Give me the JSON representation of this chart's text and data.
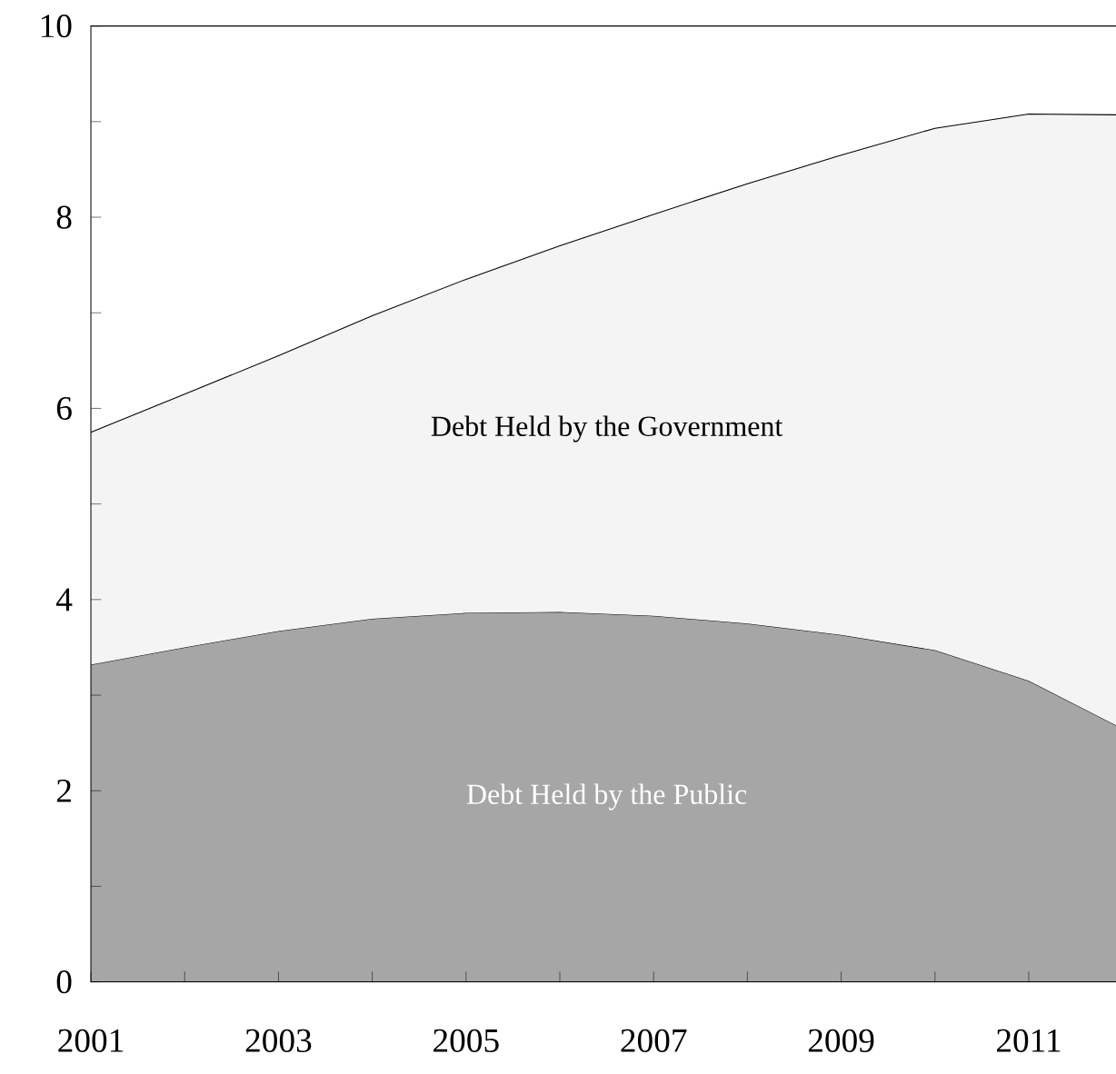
{
  "chart_data": {
    "type": "area",
    "stacked": true,
    "x": [
      2001,
      2002,
      2003,
      2004,
      2005,
      2006,
      2007,
      2008,
      2009,
      2010,
      2011,
      2012
    ],
    "series": [
      {
        "name": "Debt Held by the Public",
        "color": "#a6a6a6",
        "values": [
          3.32,
          3.5,
          3.67,
          3.8,
          3.86,
          3.87,
          3.83,
          3.75,
          3.63,
          3.47,
          3.15,
          2.65
        ]
      },
      {
        "name": "Debt Held by the Government",
        "color": "#f4f4f4",
        "values": [
          2.43,
          2.65,
          2.88,
          3.17,
          3.49,
          3.83,
          4.2,
          4.6,
          5.02,
          5.46,
          5.93,
          6.42
        ]
      }
    ],
    "xlim": [
      2001,
      2012
    ],
    "ylim": [
      0,
      10
    ],
    "xticks": [
      2001,
      {
        "value": 2002,
        "label": null
      },
      2003,
      {
        "value": 2004,
        "label": null
      },
      2005,
      {
        "value": 2006,
        "label": null
      },
      2007,
      {
        "value": 2008,
        "label": null
      },
      2009,
      {
        "value": 2010,
        "label": null
      },
      2011,
      {
        "value": 2012,
        "label": null
      }
    ],
    "yticks": [
      0,
      {
        "value": 1,
        "label": null
      },
      2,
      {
        "value": 3,
        "label": null
      },
      4,
      {
        "value": 5,
        "label": null
      },
      6,
      {
        "value": 7,
        "label": null
      },
      8,
      {
        "value": 9,
        "label": null
      },
      10
    ],
    "grid": false
  }
}
